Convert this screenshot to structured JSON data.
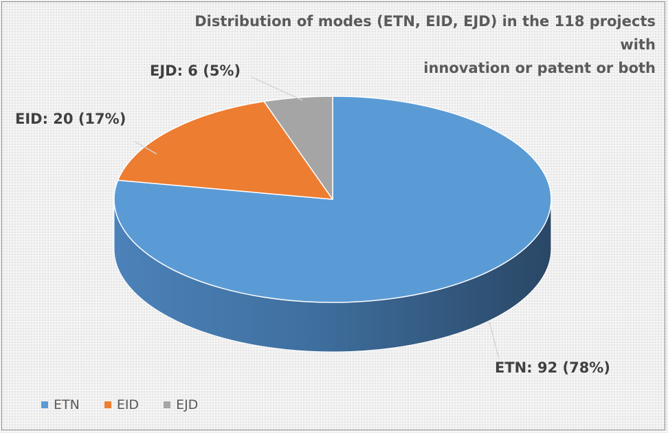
{
  "chart_data": {
    "type": "pie",
    "title_lines": [
      "Distribution of modes (ETN, EID, EJD) in the 118 projects with",
      "innovation or patent or both"
    ],
    "categories": [
      "ETN",
      "EID",
      "EJD"
    ],
    "values": [
      92,
      20,
      6
    ],
    "percents": [
      78,
      17,
      5
    ],
    "data_labels": [
      "ETN: 92 (78%)",
      "EID: 20 (17%)",
      "EJD: 6 (5%)"
    ],
    "colors": [
      "#5b9bd5",
      "#ed7d31",
      "#a5a5a5"
    ],
    "legend": {
      "position": "bottom-left",
      "entries": [
        "ETN",
        "EID",
        "EJD"
      ]
    }
  }
}
